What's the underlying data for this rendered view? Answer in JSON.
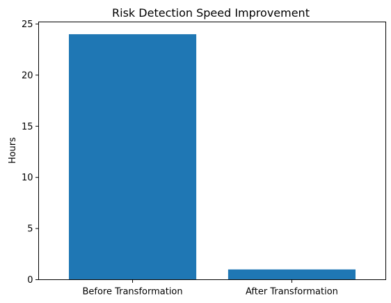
{
  "chart_data": {
    "type": "bar",
    "title": "Risk Detection Speed Improvement",
    "xlabel": "",
    "ylabel": "Hours",
    "categories": [
      "Before Transformation",
      "After Transformation"
    ],
    "values": [
      24,
      1
    ],
    "ylim": [
      0,
      25.2
    ],
    "yticks": [
      0,
      5,
      10,
      15,
      20,
      25
    ],
    "grid": false,
    "bar_color": "#1f77b4"
  }
}
